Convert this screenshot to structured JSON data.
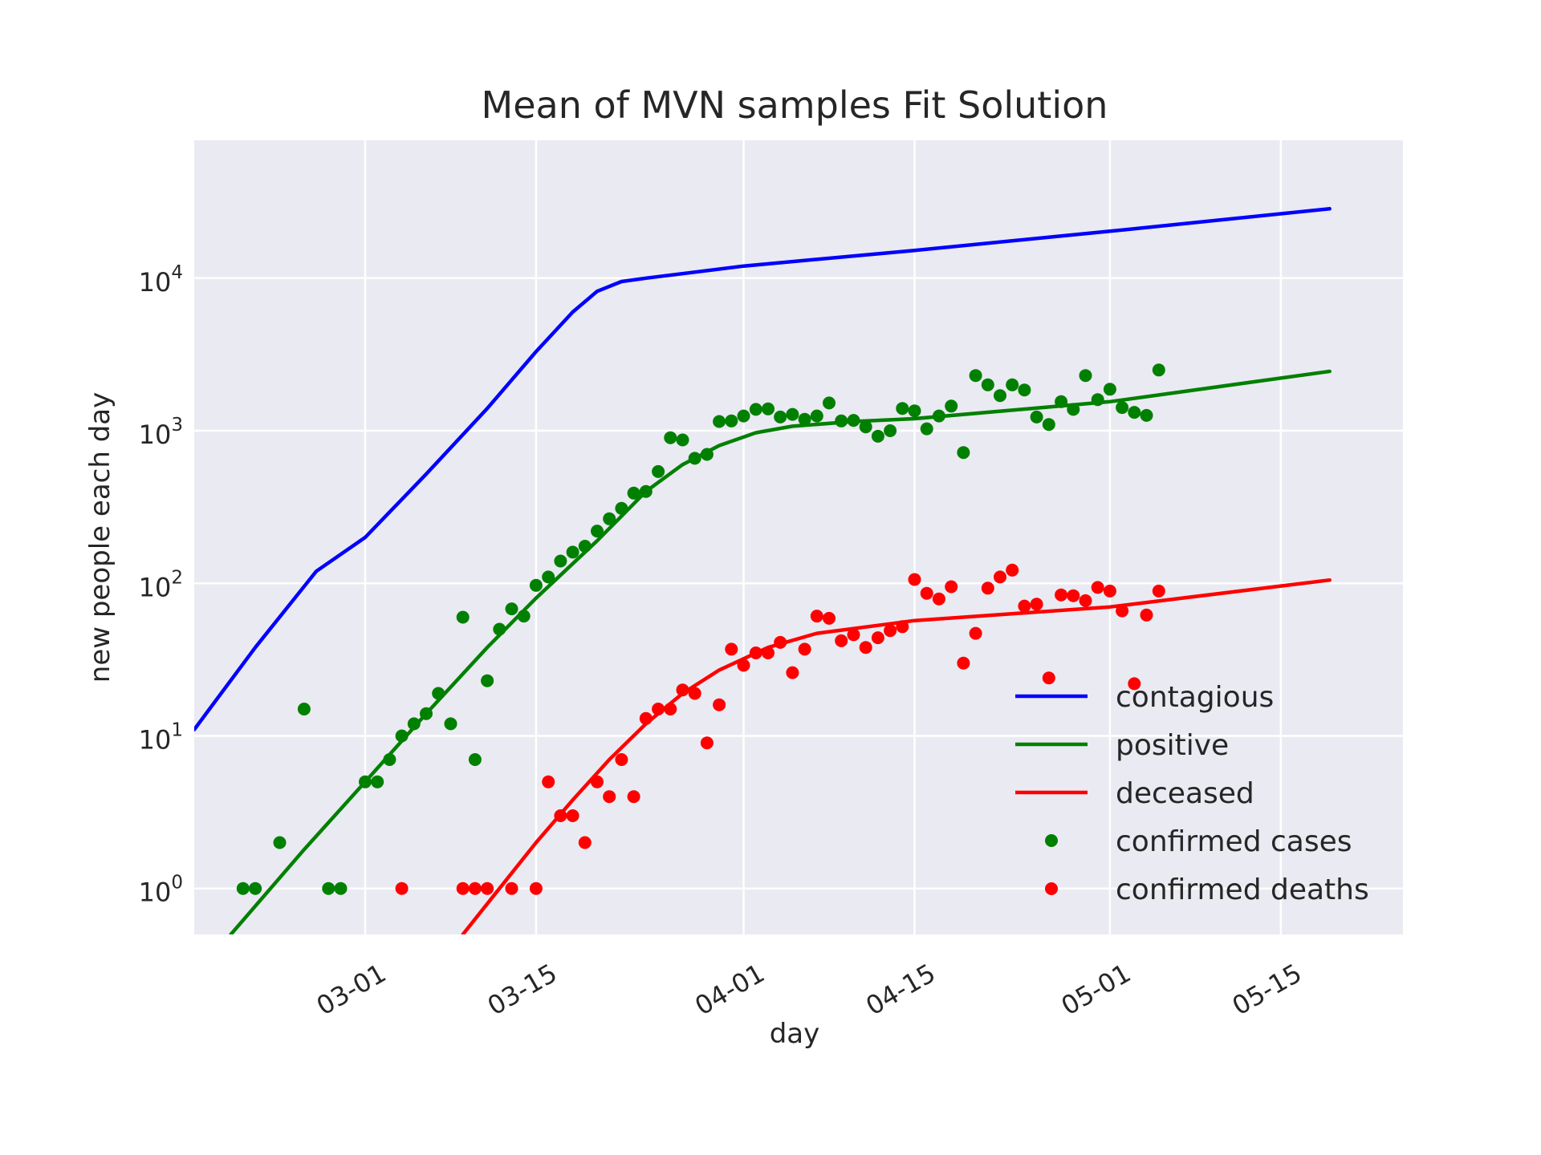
{
  "chart_data": {
    "type": "line",
    "title": "Mean of MVN samples Fit Solution",
    "xlabel": "day",
    "ylabel": "new people each day",
    "yscale": "log",
    "ylim": [
      0.5,
      80000
    ],
    "xlim": [
      "2020-02-16",
      "2020-05-25"
    ],
    "grid": true,
    "legend_position": "lower-right",
    "x_tick_labels": [
      "03-01",
      "03-15",
      "04-01",
      "04-15",
      "05-01",
      "05-15"
    ],
    "x_tick_dates": [
      "2020-03-01",
      "2020-03-15",
      "2020-04-01",
      "2020-04-15",
      "2020-05-01",
      "2020-05-15"
    ],
    "y_ticks": [
      {
        "base": "10",
        "exp": "0",
        "value": 1
      },
      {
        "base": "10",
        "exp": "1",
        "value": 10
      },
      {
        "base": "10",
        "exp": "2",
        "value": 100
      },
      {
        "base": "10",
        "exp": "3",
        "value": 1000
      },
      {
        "base": "10",
        "exp": "4",
        "value": 10000
      }
    ],
    "colors": {
      "contagious": "#0000ff",
      "positive": "#008000",
      "deceased": "#ff0000",
      "background": "#eaeaf2",
      "grid": "#ffffff"
    },
    "series": [
      {
        "name": "contagious",
        "kind": "line",
        "color": "#0000ff",
        "x": [
          "2020-02-16",
          "2020-02-21",
          "2020-02-26",
          "2020-03-01",
          "2020-03-06",
          "2020-03-11",
          "2020-03-15",
          "2020-03-18",
          "2020-03-20",
          "2020-03-22",
          "2020-03-24",
          "2020-04-01",
          "2020-04-15",
          "2020-05-01",
          "2020-05-19"
        ],
        "y": [
          11,
          38,
          120,
          200,
          520,
          1400,
          3300,
          6000,
          8200,
          9500,
          10000,
          12000,
          15200,
          20300,
          28500
        ]
      },
      {
        "name": "positive",
        "kind": "line",
        "color": "#008000",
        "x": [
          "2020-02-19",
          "2020-02-25",
          "2020-03-01",
          "2020-03-06",
          "2020-03-11",
          "2020-03-15",
          "2020-03-20",
          "2020-03-24",
          "2020-03-27",
          "2020-03-30",
          "2020-04-02",
          "2020-04-05",
          "2020-04-10",
          "2020-04-15",
          "2020-05-01",
          "2020-05-19"
        ],
        "y": [
          0.5,
          1.8,
          5,
          14,
          38,
          80,
          190,
          400,
          600,
          800,
          970,
          1070,
          1150,
          1200,
          1550,
          2450
        ]
      },
      {
        "name": "deceased",
        "kind": "line",
        "color": "#ff0000",
        "x": [
          "2020-03-09",
          "2020-03-12",
          "2020-03-15",
          "2020-03-18",
          "2020-03-21",
          "2020-03-24",
          "2020-03-27",
          "2020-03-30",
          "2020-04-03",
          "2020-04-07",
          "2020-04-12",
          "2020-04-15",
          "2020-05-01",
          "2020-05-19"
        ],
        "y": [
          0.5,
          1.0,
          2.0,
          3.8,
          7.0,
          12,
          19,
          27,
          38,
          47,
          53,
          57,
          70,
          105
        ]
      },
      {
        "name": "confirmed cases",
        "kind": "scatter",
        "color": "#008000",
        "x": [
          "2020-02-20",
          "2020-02-21",
          "2020-02-23",
          "2020-02-25",
          "2020-02-27",
          "2020-02-28",
          "2020-03-01",
          "2020-03-02",
          "2020-03-03",
          "2020-03-04",
          "2020-03-05",
          "2020-03-06",
          "2020-03-07",
          "2020-03-08",
          "2020-03-09",
          "2020-03-10",
          "2020-03-11",
          "2020-03-12",
          "2020-03-13",
          "2020-03-14",
          "2020-03-15",
          "2020-03-16",
          "2020-03-17",
          "2020-03-18",
          "2020-03-19",
          "2020-03-20",
          "2020-03-21",
          "2020-03-22",
          "2020-03-23",
          "2020-03-24",
          "2020-03-25",
          "2020-03-26",
          "2020-03-27",
          "2020-03-28",
          "2020-03-29",
          "2020-03-30",
          "2020-03-31",
          "2020-04-01",
          "2020-04-02",
          "2020-04-03",
          "2020-04-04",
          "2020-04-05",
          "2020-04-06",
          "2020-04-07",
          "2020-04-08",
          "2020-04-09",
          "2020-04-10",
          "2020-04-11",
          "2020-04-12",
          "2020-04-13",
          "2020-04-14",
          "2020-04-15",
          "2020-04-16",
          "2020-04-17",
          "2020-04-18",
          "2020-04-19",
          "2020-04-20",
          "2020-04-21",
          "2020-04-22",
          "2020-04-23",
          "2020-04-24",
          "2020-04-25",
          "2020-04-26",
          "2020-04-27",
          "2020-04-28",
          "2020-04-29",
          "2020-04-30",
          "2020-05-01",
          "2020-05-02",
          "2020-05-03",
          "2020-05-04",
          "2020-05-05"
        ],
        "y": [
          1,
          1,
          2,
          15,
          1,
          1,
          5,
          5,
          7,
          10,
          12,
          14,
          19,
          12,
          60,
          7,
          23,
          50,
          68,
          61,
          97,
          110,
          140,
          160,
          175,
          220,
          265,
          310,
          390,
          400,
          540,
          900,
          870,
          660,
          700,
          1150,
          1160,
          1250,
          1380,
          1390,
          1230,
          1280,
          1190,
          1250,
          1520,
          1160,
          1170,
          1060,
          920,
          1000,
          1400,
          1350,
          1030,
          1250,
          1450,
          720,
          2300,
          2000,
          1700,
          2000,
          1850,
          1230,
          1100,
          1550,
          1380,
          2300,
          1600,
          1870,
          1420,
          1320,
          1260,
          2500
        ]
      },
      {
        "name": "confirmed deaths",
        "kind": "scatter",
        "color": "#ff0000",
        "x": [
          "2020-03-04",
          "2020-03-09",
          "2020-03-10",
          "2020-03-11",
          "2020-03-13",
          "2020-03-15",
          "2020-03-16",
          "2020-03-17",
          "2020-03-18",
          "2020-03-19",
          "2020-03-20",
          "2020-03-21",
          "2020-03-22",
          "2020-03-23",
          "2020-03-24",
          "2020-03-25",
          "2020-03-26",
          "2020-03-27",
          "2020-03-28",
          "2020-03-29",
          "2020-03-30",
          "2020-03-31",
          "2020-04-01",
          "2020-04-02",
          "2020-04-03",
          "2020-04-04",
          "2020-04-05",
          "2020-04-06",
          "2020-04-07",
          "2020-04-08",
          "2020-04-09",
          "2020-04-10",
          "2020-04-11",
          "2020-04-12",
          "2020-04-13",
          "2020-04-14",
          "2020-04-15",
          "2020-04-16",
          "2020-04-17",
          "2020-04-18",
          "2020-04-19",
          "2020-04-20",
          "2020-04-21",
          "2020-04-22",
          "2020-04-23",
          "2020-04-24",
          "2020-04-25",
          "2020-04-26",
          "2020-04-27",
          "2020-04-28",
          "2020-04-29",
          "2020-04-30",
          "2020-05-01",
          "2020-05-02",
          "2020-05-03",
          "2020-05-04",
          "2020-05-05"
        ],
        "y": [
          1,
          1,
          1,
          1,
          1,
          1,
          5,
          3,
          3,
          2,
          5,
          4,
          7,
          4,
          13,
          15,
          15,
          20,
          19,
          9,
          16,
          37,
          29,
          35,
          35,
          41,
          26,
          37,
          61,
          59,
          42,
          46,
          38,
          44,
          49,
          52,
          106,
          86,
          79,
          95,
          30,
          47,
          93,
          110,
          122,
          71,
          73,
          24,
          84,
          83,
          77,
          94,
          89,
          66,
          22,
          62,
          89
        ]
      }
    ]
  }
}
